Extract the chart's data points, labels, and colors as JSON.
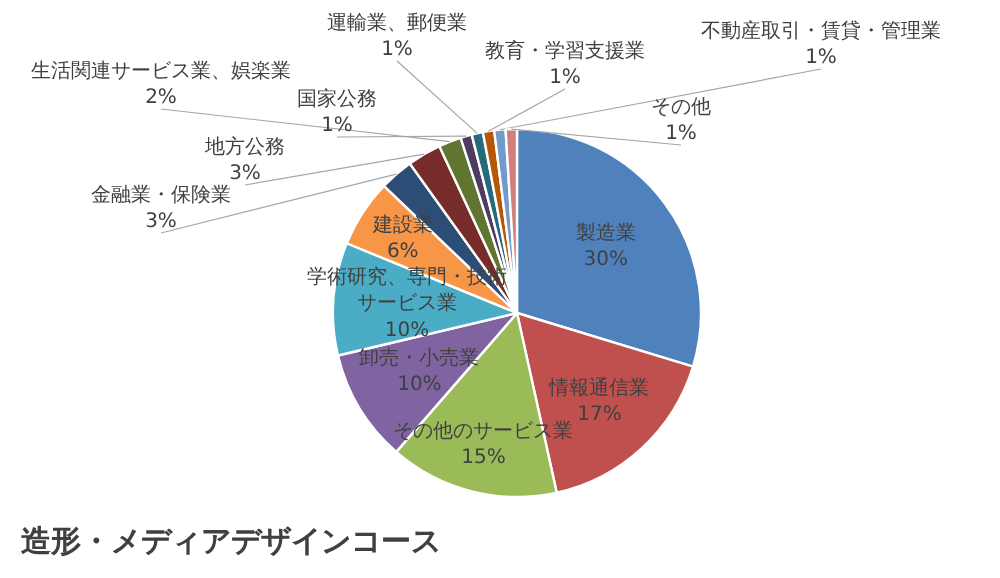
{
  "chart_data": {
    "type": "pie",
    "title": "造形・メディアデザインコース",
    "categories": [
      "製造業",
      "情報通信業",
      "その他のサービス業",
      "卸売・小売業",
      "学術研究、専門・技術サービス業",
      "建設業",
      "金融業・保険業",
      "地方公務",
      "生活関連サービス業、娯楽業",
      "国家公務",
      "運輸業、郵便業",
      "教育・学習支援業",
      "不動産取引・賃貸・管理業",
      "その他"
    ],
    "values": [
      30,
      17,
      15,
      10,
      10,
      6,
      3,
      3,
      2,
      1,
      1,
      1,
      1,
      1
    ],
    "value_labels": [
      "30%",
      "17%",
      "15%",
      "10%",
      "10%",
      "6%",
      "3%",
      "3%",
      "2%",
      "1%",
      "1%",
      "1%",
      "1%",
      "1%"
    ],
    "colors": [
      "#4f81bd",
      "#c0504d",
      "#9bbb59",
      "#8064a2",
      "#4bacc6",
      "#f79646",
      "#2c4d75",
      "#772c2a",
      "#5f7530",
      "#4d3b62",
      "#276a7c",
      "#b65708",
      "#729aca",
      "#d07f7d"
    ]
  }
}
